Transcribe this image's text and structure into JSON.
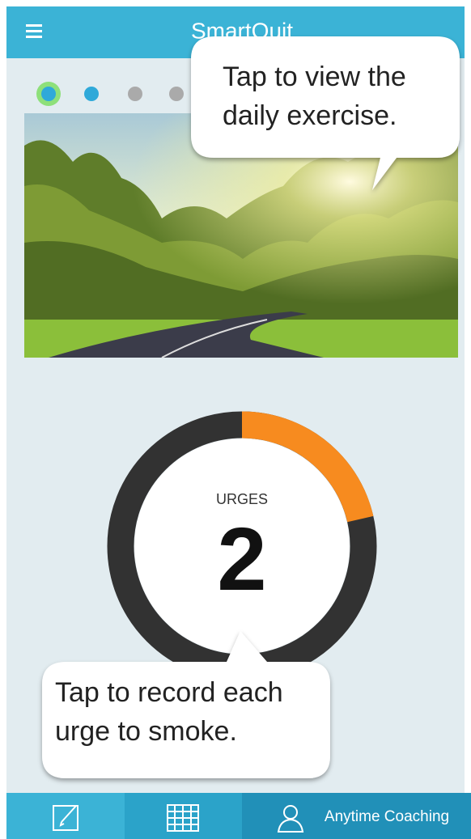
{
  "app_bar": {
    "title": "SmartQuit"
  },
  "exercise_tip": {
    "lines": [
      "Tap to view the",
      "daily exercise."
    ]
  },
  "urges": {
    "label": "URGES",
    "count": 2
  },
  "urge_tip": {
    "lines": [
      "Tap to record each",
      "urge to smoke."
    ]
  },
  "bottom_nav": {
    "coaching": "Anytime Coaching"
  }
}
